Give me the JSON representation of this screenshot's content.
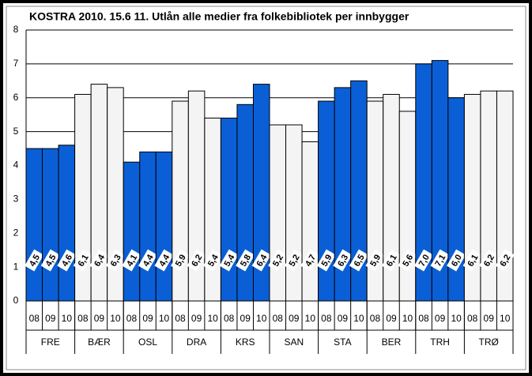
{
  "chart_data": {
    "type": "bar",
    "title": "KOSTRA 2010. 15.6 11. Utlån alle medier fra folkebibliotek per innbygger",
    "categories": [
      "08",
      "09",
      "10"
    ],
    "groups": [
      {
        "name": "FRE",
        "color": "#0a5fd6",
        "values": [
          4.5,
          4.5,
          4.6
        ],
        "value_labels": [
          "4,5",
          "4,5",
          "4,6"
        ]
      },
      {
        "name": "BÆR",
        "color": "#f4f4f4",
        "values": [
          6.1,
          6.4,
          6.3
        ],
        "value_labels": [
          "6,1",
          "6,4",
          "6,3"
        ]
      },
      {
        "name": "OSL",
        "color": "#0a5fd6",
        "values": [
          4.1,
          4.4,
          4.4
        ],
        "value_labels": [
          "4,1",
          "4,4",
          "4,4"
        ]
      },
      {
        "name": "DRA",
        "color": "#f4f4f4",
        "values": [
          5.9,
          6.2,
          5.4
        ],
        "value_labels": [
          "5,9",
          "6,2",
          "5,4"
        ]
      },
      {
        "name": "KRS",
        "color": "#0a5fd6",
        "values": [
          5.4,
          5.8,
          6.4
        ],
        "value_labels": [
          "5,4",
          "5,8",
          "6,4"
        ]
      },
      {
        "name": "SAN",
        "color": "#f4f4f4",
        "values": [
          5.2,
          5.2,
          4.7
        ],
        "value_labels": [
          "5,2",
          "5,2",
          "4,7"
        ]
      },
      {
        "name": "STA",
        "color": "#0a5fd6",
        "values": [
          5.9,
          6.3,
          6.5
        ],
        "value_labels": [
          "5,9",
          "6,3",
          "6,5"
        ]
      },
      {
        "name": "BER",
        "color": "#f4f4f4",
        "values": [
          5.9,
          6.1,
          5.6
        ],
        "value_labels": [
          "5,9",
          "6,1",
          "5,6"
        ]
      },
      {
        "name": "TRH",
        "color": "#0a5fd6",
        "values": [
          7.0,
          7.1,
          6.0
        ],
        "value_labels": [
          "7,0",
          "7,1",
          "6,0"
        ]
      },
      {
        "name": "TRØ",
        "color": "#f4f4f4",
        "values": [
          6.1,
          6.2,
          6.2
        ],
        "value_labels": [
          "6,1",
          "6,2",
          "6,2"
        ]
      }
    ],
    "ylim": [
      0,
      8
    ],
    "yticks": [
      0,
      1,
      2,
      3,
      4,
      5,
      6,
      7,
      8
    ],
    "grid": true
  }
}
